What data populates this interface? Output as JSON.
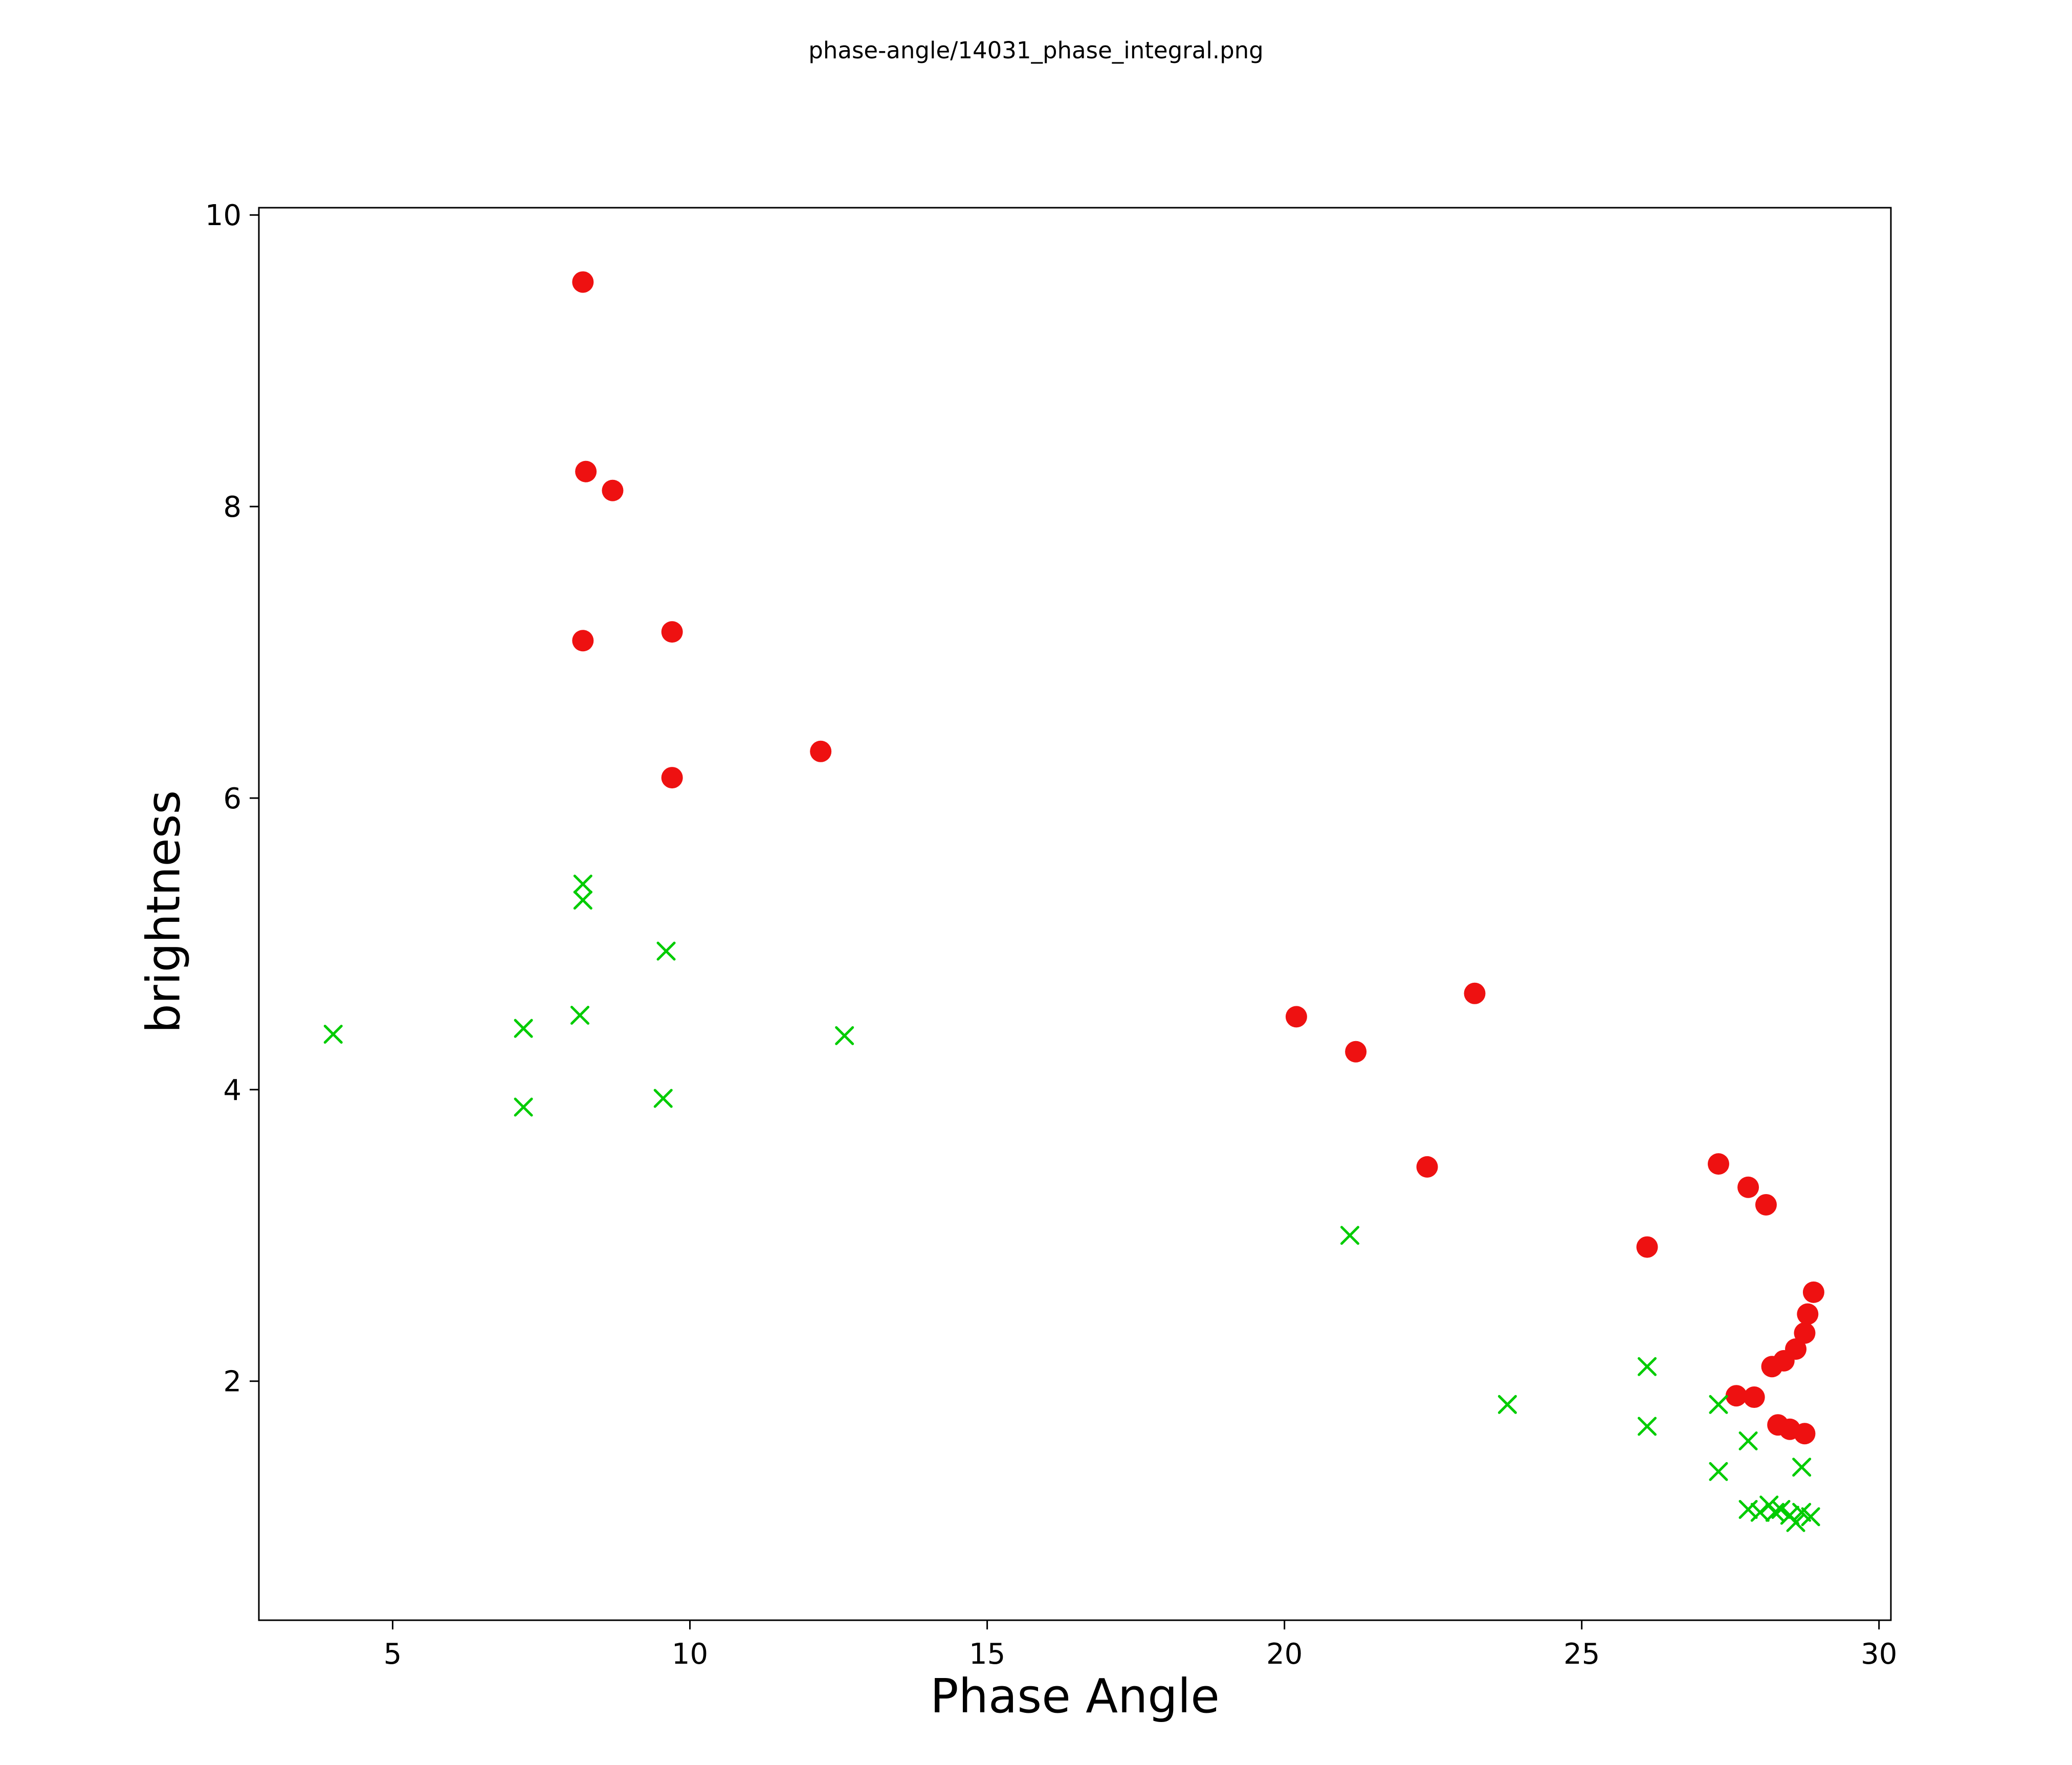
{
  "figure_title": "phase-angle/14031_phase_integral.png",
  "chart_data": {
    "type": "scatter",
    "title": "phase-angle/14031_phase_integral.png",
    "xlabel": "Phase Angle",
    "ylabel": "brightness",
    "xlim": [
      2.75,
      30.2
    ],
    "ylim": [
      0.36,
      10.05
    ],
    "x_ticks": [
      5,
      10,
      15,
      20,
      25,
      30
    ],
    "y_ticks": [
      2,
      4,
      6,
      8,
      10
    ],
    "grid": false,
    "legend": "none",
    "axis_color": "#000000",
    "series": [
      {
        "name": "red-circles",
        "marker": "circle",
        "color": "#ee1111",
        "points": [
          [
            8.2,
            9.54
          ],
          [
            8.25,
            8.24
          ],
          [
            8.7,
            8.11
          ],
          [
            8.2,
            7.08
          ],
          [
            9.7,
            7.14
          ],
          [
            9.7,
            6.14
          ],
          [
            12.2,
            6.32
          ],
          [
            20.2,
            4.5
          ],
          [
            21.2,
            4.26
          ],
          [
            23.2,
            4.66
          ],
          [
            22.4,
            3.47
          ],
          [
            27.3,
            3.49
          ],
          [
            27.8,
            3.33
          ],
          [
            28.1,
            3.21
          ],
          [
            26.1,
            2.92
          ],
          [
            28.9,
            2.61
          ],
          [
            28.8,
            2.46
          ],
          [
            28.75,
            2.33
          ],
          [
            28.6,
            2.22
          ],
          [
            28.4,
            2.14
          ],
          [
            28.2,
            2.1
          ],
          [
            27.6,
            1.9
          ],
          [
            27.9,
            1.89
          ],
          [
            28.3,
            1.7
          ],
          [
            28.5,
            1.67
          ],
          [
            28.75,
            1.64
          ]
        ]
      },
      {
        "name": "green-crosses",
        "marker": "x",
        "color": "#00cc00",
        "points": [
          [
            4.0,
            4.38
          ],
          [
            7.2,
            4.42
          ],
          [
            7.2,
            3.88
          ],
          [
            8.2,
            5.41
          ],
          [
            8.2,
            5.3
          ],
          [
            8.15,
            4.51
          ],
          [
            9.6,
            4.95
          ],
          [
            9.55,
            3.94
          ],
          [
            12.6,
            4.37
          ],
          [
            21.1,
            3.0
          ],
          [
            23.75,
            1.84
          ],
          [
            26.1,
            2.1
          ],
          [
            26.1,
            1.69
          ],
          [
            27.3,
            1.84
          ],
          [
            27.3,
            1.38
          ],
          [
            27.8,
            1.59
          ],
          [
            28.7,
            1.41
          ],
          [
            27.8,
            1.12
          ],
          [
            28.0,
            1.1
          ],
          [
            28.15,
            1.15
          ],
          [
            28.25,
            1.1
          ],
          [
            28.35,
            1.12
          ],
          [
            28.5,
            1.08
          ],
          [
            28.6,
            1.03
          ],
          [
            28.7,
            1.1
          ],
          [
            28.85,
            1.07
          ]
        ]
      }
    ]
  }
}
